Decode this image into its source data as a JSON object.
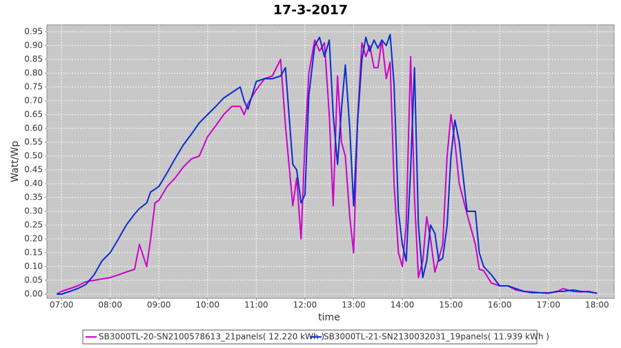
{
  "chart_data": {
    "type": "line",
    "title": "17-3-2017",
    "x_label": "time",
    "y_label": "Watt/Wp",
    "x": [
      6.9,
      7.0,
      7.17,
      7.33,
      7.5,
      7.67,
      7.83,
      8.0,
      8.17,
      8.33,
      8.5,
      8.6,
      8.75,
      8.83,
      8.92,
      9.0,
      9.17,
      9.33,
      9.5,
      9.67,
      9.83,
      10.0,
      10.17,
      10.33,
      10.5,
      10.67,
      10.75,
      10.83,
      11.0,
      11.17,
      11.33,
      11.5,
      11.6,
      11.75,
      11.83,
      11.92,
      12.0,
      12.08,
      12.2,
      12.3,
      12.4,
      12.5,
      12.58,
      12.67,
      12.75,
      12.83,
      12.92,
      13.0,
      13.08,
      13.17,
      13.25,
      13.33,
      13.42,
      13.5,
      13.58,
      13.67,
      13.75,
      13.83,
      13.92,
      14.0,
      14.08,
      14.17,
      14.25,
      14.33,
      14.42,
      14.5,
      14.58,
      14.67,
      14.75,
      14.83,
      14.92,
      15.0,
      15.08,
      15.17,
      15.33,
      15.5,
      15.58,
      15.67,
      15.83,
      16.0,
      16.17,
      16.33,
      16.5,
      16.67,
      16.83,
      17.0,
      17.17,
      17.3,
      17.5,
      17.67,
      17.83,
      18.0
    ],
    "series": [
      {
        "name": "SB3000TL-20-SN2100578613_21panels( 12.220 kWh )",
        "color": "#cc00cc",
        "values": [
          0.0,
          0.01,
          0.02,
          0.03,
          0.045,
          0.05,
          0.055,
          0.06,
          0.07,
          0.08,
          0.09,
          0.18,
          0.1,
          0.2,
          0.33,
          0.34,
          0.39,
          0.42,
          0.46,
          0.49,
          0.5,
          0.57,
          0.61,
          0.65,
          0.68,
          0.68,
          0.65,
          0.69,
          0.74,
          0.78,
          0.79,
          0.85,
          0.61,
          0.32,
          0.42,
          0.2,
          0.55,
          0.8,
          0.92,
          0.88,
          0.91,
          0.65,
          0.32,
          0.79,
          0.55,
          0.5,
          0.28,
          0.15,
          0.63,
          0.91,
          0.86,
          0.9,
          0.82,
          0.82,
          0.92,
          0.78,
          0.84,
          0.4,
          0.15,
          0.1,
          0.25,
          0.86,
          0.35,
          0.06,
          0.12,
          0.28,
          0.2,
          0.08,
          0.13,
          0.18,
          0.5,
          0.65,
          0.55,
          0.4,
          0.29,
          0.18,
          0.09,
          0.085,
          0.04,
          0.03,
          0.03,
          0.015,
          0.01,
          0.008,
          0.005,
          0.005,
          0.008,
          0.02,
          0.01,
          0.008,
          0.01,
          0.003
        ]
      },
      {
        "name": "SB3000TL-21-SN2130032031_19panels( 11.939 kWh )",
        "color": "#0a2ccc",
        "values": [
          0.0,
          0.0,
          0.01,
          0.02,
          0.035,
          0.07,
          0.12,
          0.15,
          0.2,
          0.25,
          0.29,
          0.31,
          0.33,
          0.37,
          0.38,
          0.39,
          0.44,
          0.49,
          0.54,
          0.58,
          0.62,
          0.65,
          0.68,
          0.71,
          0.73,
          0.75,
          0.7,
          0.67,
          0.77,
          0.78,
          0.78,
          0.79,
          0.82,
          0.47,
          0.45,
          0.33,
          0.36,
          0.72,
          0.9,
          0.93,
          0.86,
          0.92,
          0.65,
          0.47,
          0.67,
          0.83,
          0.6,
          0.32,
          0.62,
          0.85,
          0.93,
          0.88,
          0.92,
          0.89,
          0.92,
          0.9,
          0.94,
          0.76,
          0.3,
          0.18,
          0.12,
          0.45,
          0.82,
          0.25,
          0.06,
          0.12,
          0.25,
          0.22,
          0.12,
          0.13,
          0.25,
          0.5,
          0.63,
          0.55,
          0.3,
          0.3,
          0.15,
          0.1,
          0.07,
          0.03,
          0.03,
          0.02,
          0.01,
          0.005,
          0.005,
          0.003,
          0.01,
          0.01,
          0.015,
          0.01,
          0.008,
          0.003
        ]
      }
    ],
    "xlim": [
      6.7,
      18.35
    ],
    "xticks": [
      {
        "value": 7,
        "label": "07:00"
      },
      {
        "value": 8,
        "label": "08:00"
      },
      {
        "value": 9,
        "label": "09:00"
      },
      {
        "value": 10,
        "label": "10:00"
      },
      {
        "value": 11,
        "label": "11:00"
      },
      {
        "value": 12,
        "label": "12:00"
      },
      {
        "value": 13,
        "label": "13:00"
      },
      {
        "value": 14,
        "label": "14:00"
      },
      {
        "value": 15,
        "label": "15:00"
      },
      {
        "value": 16,
        "label": "16:00"
      },
      {
        "value": 17,
        "label": "17:00"
      },
      {
        "value": 18,
        "label": "18:00"
      }
    ],
    "ylim": [
      -0.015,
      0.975
    ],
    "yticks": [
      {
        "value": 0,
        "label": "0.00"
      },
      0.05,
      {
        "value": 0.1,
        "label": "0.10"
      },
      0.15,
      {
        "value": 0.2,
        "label": "0.20"
      },
      0.25,
      {
        "value": 0.3,
        "label": "0.30"
      },
      0.35,
      {
        "value": 0.4,
        "label": "0.40"
      },
      0.45,
      {
        "value": 0.5,
        "label": "0.50"
      },
      0.55,
      {
        "value": 0.6,
        "label": "0.60"
      },
      0.65,
      {
        "value": 0.7,
        "label": "0.70"
      },
      0.75,
      {
        "value": 0.8,
        "label": "0.80"
      },
      0.85,
      {
        "value": 0.9,
        "label": "0.90"
      },
      0.95
    ],
    "grid": true
  }
}
